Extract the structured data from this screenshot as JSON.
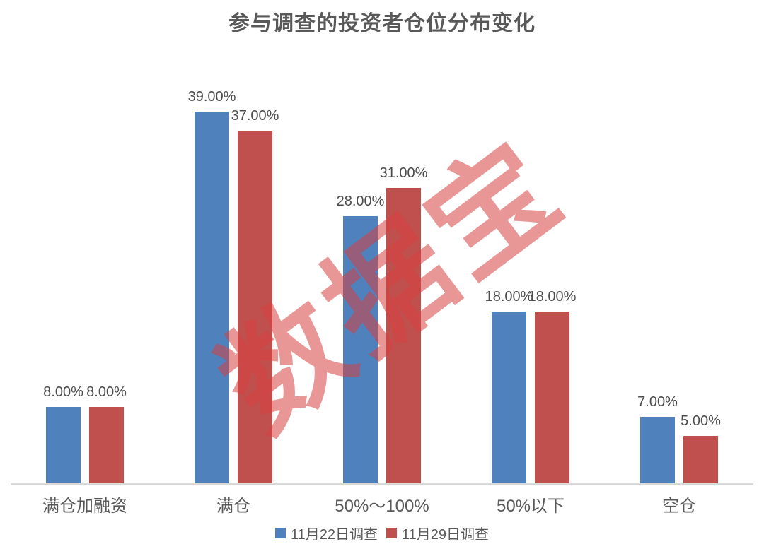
{
  "title": "参与调查的投资者仓位分布变化",
  "watermark": "数据宝",
  "colors": {
    "series1": "#4F81BD",
    "series2": "#C0504D",
    "axis_line": "#D9D9D9",
    "title_text": "#595959",
    "label_text": "#4D4D4D",
    "watermark": "#D64040"
  },
  "legend": {
    "items": [
      {
        "label": "11月22日调查",
        "color": "#4F81BD"
      },
      {
        "label": "11月29日调查",
        "color": "#C0504D"
      }
    ]
  },
  "chart_data": {
    "type": "bar",
    "title": "参与调查的投资者仓位分布变化",
    "categories": [
      "满仓加融资",
      "满仓",
      "50%～100%",
      "50%以下",
      "空仓"
    ],
    "series": [
      {
        "name": "11月22日调查",
        "color": "#4F81BD",
        "values": [
          8,
          39,
          28,
          18,
          7
        ],
        "labels": [
          "8.00%",
          "39.00%",
          "28.00%",
          "18.00%",
          "7.00%"
        ]
      },
      {
        "name": "11月29日调查",
        "color": "#C0504D",
        "values": [
          8,
          37,
          31,
          18,
          5
        ],
        "labels": [
          "8.00%",
          "37.00%",
          "31.00%",
          "18.00%",
          "5.00%"
        ]
      }
    ],
    "xlabel": "",
    "ylabel": "",
    "ylim": [
      0,
      43
    ],
    "value_label_format": "0.00%",
    "grid": false,
    "y_axis_visible": false,
    "legend_position": "bottom"
  }
}
